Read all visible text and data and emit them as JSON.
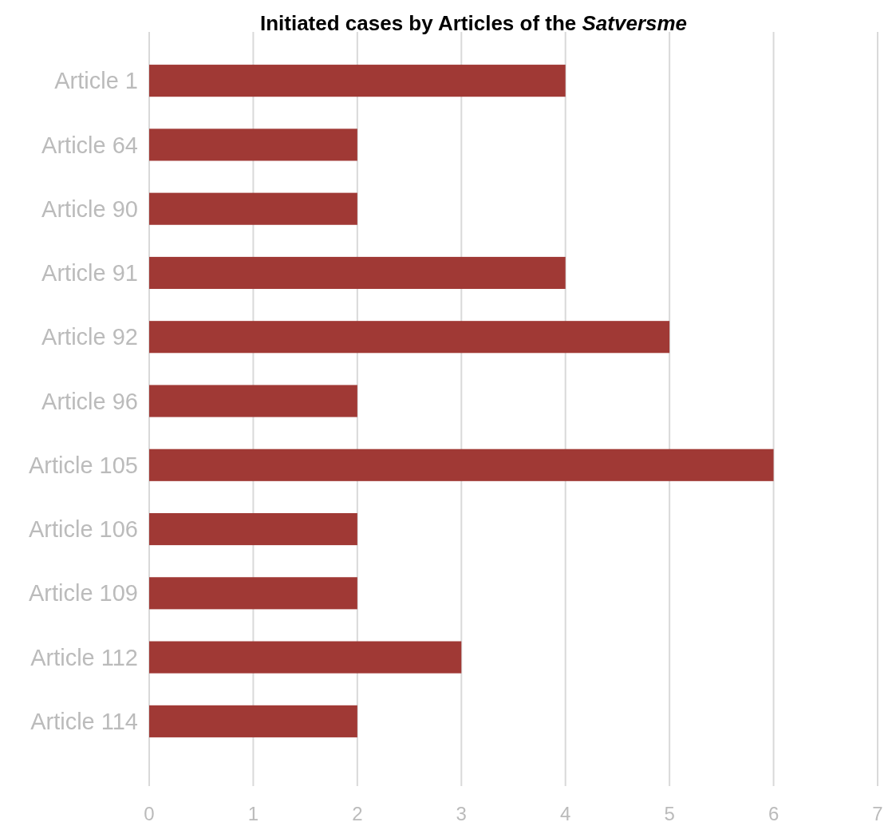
{
  "chart_data": {
    "type": "bar",
    "orientation": "horizontal",
    "title": "Initiated cases by Articles of the Satversme",
    "categories": [
      "Article 1",
      "Article 64",
      "Article 90",
      "Article 91",
      "Article 92",
      "Article 96",
      "Article 105",
      "Article 106",
      "Article 109",
      "Article 112",
      "Article 114"
    ],
    "values": [
      4,
      2,
      2,
      4,
      5,
      2,
      6,
      2,
      2,
      3,
      2
    ],
    "color": "#a03935",
    "xlim": [
      0,
      7
    ],
    "xticks": [
      0,
      1,
      2,
      3,
      4,
      5,
      6,
      7
    ],
    "grid": "x"
  }
}
